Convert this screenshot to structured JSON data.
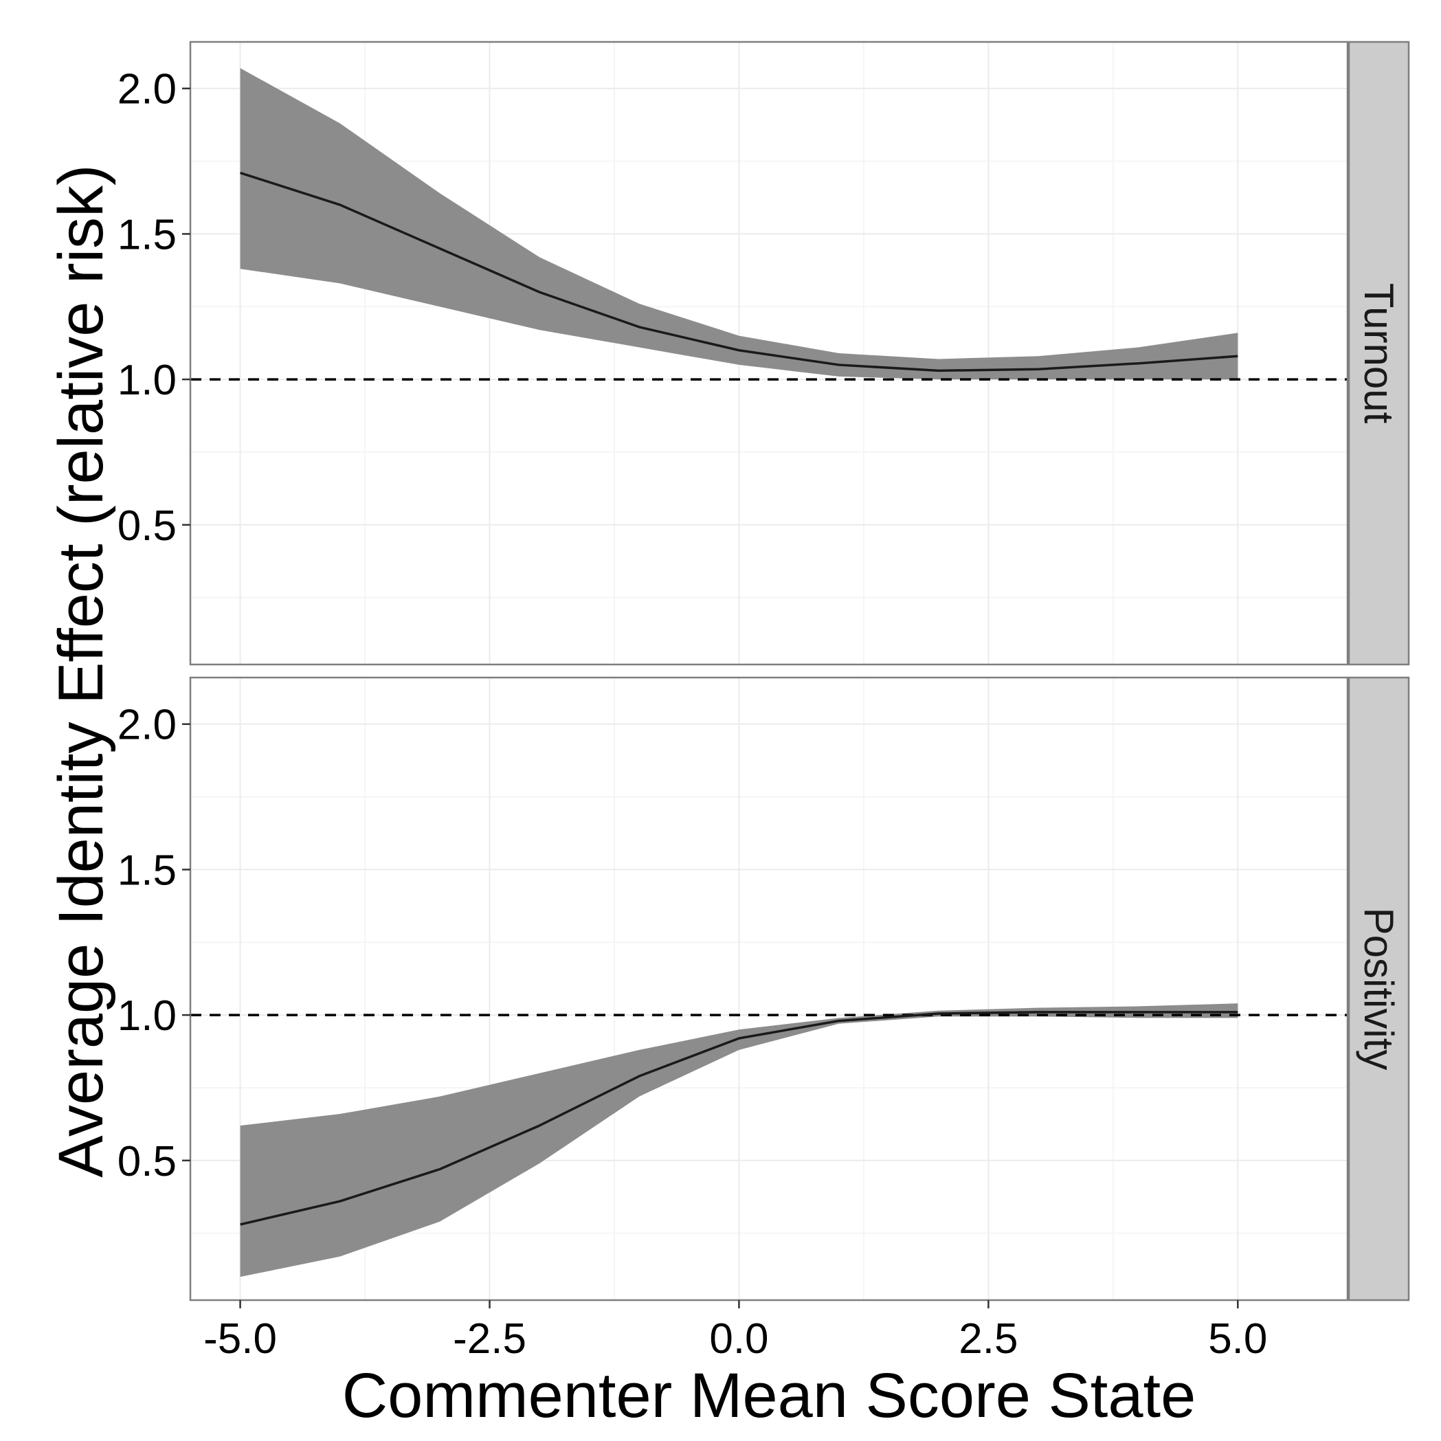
{
  "chart_data": {
    "type": "line",
    "xlabel": "Commenter Mean Score State",
    "ylabel": "Average Identity Effect (relative risk)",
    "x_ticks": [
      "-5.0",
      "-2.5",
      "0.0",
      "2.5",
      "5.0"
    ],
    "y_ticks": [
      "0.5",
      "1.0",
      "1.5",
      "2.0"
    ],
    "xlim": [
      -5.5,
      6.1
    ],
    "ylim": [
      0.02,
      2.16
    ],
    "reference_line": 1.0,
    "grid": true,
    "colors": {
      "line": "#1a1a1a",
      "ribbon": "#8c8c8c",
      "strip": "#cccccc",
      "grid": "#ebebeb",
      "frame": "#7f7f7f"
    },
    "panels": [
      {
        "label": "Turnout",
        "x": [
          -5,
          -4,
          -3,
          -2,
          -1,
          0,
          1,
          2,
          3,
          4,
          5
        ],
        "estimate": [
          1.71,
          1.6,
          1.45,
          1.3,
          1.18,
          1.1,
          1.05,
          1.03,
          1.035,
          1.055,
          1.08
        ],
        "lower": [
          1.38,
          1.33,
          1.25,
          1.17,
          1.11,
          1.05,
          1.01,
          1.0,
          1.0,
          1.0,
          1.0
        ],
        "upper": [
          2.07,
          1.88,
          1.64,
          1.42,
          1.26,
          1.15,
          1.09,
          1.07,
          1.08,
          1.11,
          1.16
        ]
      },
      {
        "label": "Positivity",
        "x": [
          -5,
          -4,
          -3,
          -2,
          -1,
          0,
          1,
          2,
          3,
          4,
          5
        ],
        "estimate": [
          0.28,
          0.36,
          0.47,
          0.62,
          0.79,
          0.92,
          0.98,
          1.005,
          1.01,
          1.01,
          1.01
        ],
        "lower": [
          0.1,
          0.17,
          0.29,
          0.49,
          0.72,
          0.88,
          0.97,
          0.995,
          0.995,
          0.99,
          0.99
        ],
        "upper": [
          0.62,
          0.66,
          0.72,
          0.8,
          0.88,
          0.95,
          0.99,
          1.015,
          1.025,
          1.03,
          1.04
        ]
      }
    ]
  }
}
